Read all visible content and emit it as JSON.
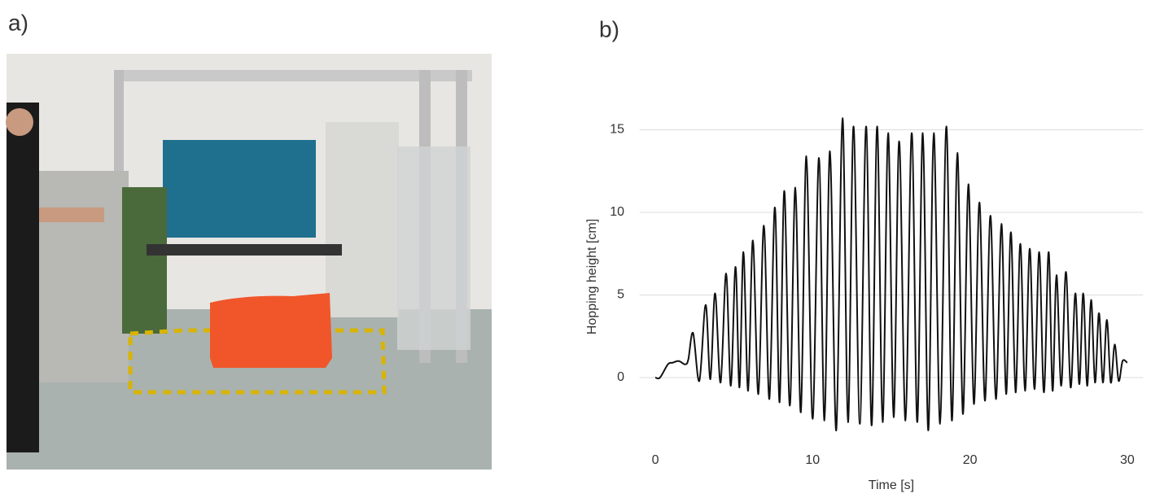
{
  "panel_labels": [
    "a)",
    "b)"
  ],
  "chart_data": {
    "type": "line",
    "xlabel": "Time [s]",
    "ylabel": "Hopping height [cm]",
    "xlim": [
      -1,
      31
    ],
    "ylim": [
      -4,
      16
    ],
    "xticks": [
      0,
      10,
      20,
      30
    ],
    "yticks": [
      0,
      5,
      10,
      15
    ],
    "grid": true,
    "series": [
      {
        "color": "#111111",
        "x": [
          0,
          0.3,
          0.8,
          1.1,
          1.5,
          1.9,
          2.1,
          2.4,
          2.8,
          3.2,
          3.5,
          3.8,
          4.15,
          4.5,
          4.8,
          5.1,
          5.35,
          5.6,
          5.9,
          6.2,
          6.55,
          6.9,
          7.25,
          7.6,
          7.9,
          8.2,
          8.55,
          8.9,
          9.25,
          9.6,
          10.0,
          10.4,
          10.75,
          11.1,
          11.5,
          11.9,
          12.25,
          12.6,
          13.0,
          13.4,
          13.75,
          14.1,
          14.45,
          14.8,
          15.15,
          15.5,
          15.9,
          16.3,
          16.65,
          17.0,
          17.35,
          17.7,
          18.1,
          18.5,
          18.85,
          19.2,
          19.55,
          19.9,
          20.25,
          20.6,
          20.95,
          21.3,
          21.65,
          22.0,
          22.3,
          22.6,
          22.9,
          23.2,
          23.5,
          23.8,
          24.1,
          24.4,
          24.7,
          25.0,
          25.25,
          25.5,
          25.8,
          26.1,
          26.4,
          26.7,
          26.95,
          27.2,
          27.45,
          27.7,
          27.95,
          28.2,
          28.45,
          28.7,
          28.95,
          29.2,
          29.45,
          29.7,
          30.0
        ],
        "values": [
          0,
          0,
          0.8,
          0.9,
          1.0,
          0.8,
          1.1,
          2.7,
          -0.2,
          4.4,
          -0.1,
          5.1,
          -0.3,
          6.3,
          -0.5,
          6.7,
          -0.6,
          7.6,
          -0.8,
          8.3,
          -1.0,
          9.2,
          -1.3,
          10.3,
          -1.5,
          11.3,
          -1.7,
          11.5,
          -2.1,
          13.4,
          -2.5,
          13.3,
          -2.6,
          13.7,
          -3.2,
          15.7,
          -2.7,
          15.2,
          -2.8,
          15.2,
          -2.9,
          15.2,
          -2.7,
          14.8,
          -2.4,
          14.3,
          -2.6,
          14.8,
          -2.7,
          14.8,
          -3.2,
          14.8,
          -2.8,
          15.2,
          -2.6,
          13.6,
          -2.2,
          11.7,
          -1.6,
          10.6,
          -1.4,
          9.8,
          -1.3,
          9.3,
          -1.0,
          8.8,
          -0.9,
          8.1,
          -0.8,
          7.8,
          -0.7,
          7.6,
          -0.9,
          7.6,
          -0.8,
          6.2,
          -0.5,
          6.4,
          -0.6,
          5.1,
          -0.4,
          5.1,
          -0.5,
          4.7,
          -0.3,
          3.9,
          -0.3,
          3.5,
          -0.3,
          2.0,
          -0.2,
          1.0,
          0.9
        ]
      }
    ]
  }
}
